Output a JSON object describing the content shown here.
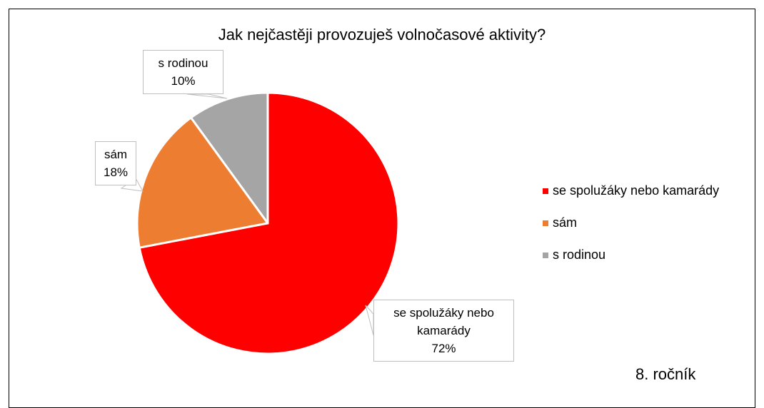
{
  "chart_data": {
    "type": "pie",
    "title": "Jak nejčastěji provozuješ volnočasové aktivity?",
    "categories": [
      "se spolužáky nebo kamarády",
      "sám",
      "s rodinou"
    ],
    "values": [
      72,
      18,
      10
    ],
    "value_labels": [
      "72%",
      "18%",
      "10%"
    ],
    "colors": [
      "#ff0000",
      "#ed7d31",
      "#a5a5a5"
    ],
    "legend": "right",
    "annotation": "8. ročník"
  }
}
